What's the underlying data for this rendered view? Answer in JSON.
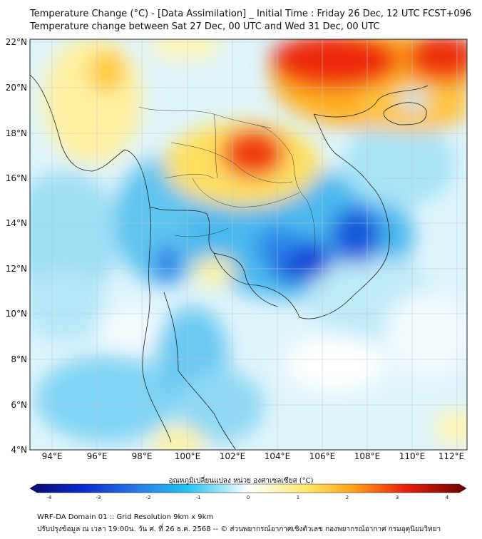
{
  "title_line1": "Temperature Change (°C) - [Data Assimilation] _ Initial Time : Friday 26 Dec, 12 UTC FCST+096",
  "title_line2": "Temperature change between Sat 27 Dec, 00 UTC and Wed 31 Dec, 00 UTC",
  "lat_labels": [
    "22°N",
    "20°N",
    "18°N",
    "16°N",
    "14°N",
    "12°N",
    "10°N",
    "8°N",
    "6°N",
    "4°N"
  ],
  "lon_labels": [
    "94°E",
    "96°E",
    "98°E",
    "100°E",
    "102°E",
    "104°E",
    "106°E",
    "108°E",
    "110°E",
    "112°E"
  ],
  "colorbar": {
    "label": "อุณหภูมิเปลี่ยนแปลง หน่วย องศาเซลเซียส (°C)",
    "ticks": [
      "-4",
      "-3",
      "-2",
      "-1",
      "0",
      "1",
      "2",
      "3",
      "4"
    ],
    "min": -4,
    "max": 4
  },
  "footer_line1": "WRF-DA Domain 01 :: Grid Resolution 9km x 9km",
  "footer_line2": "ปรับปรุงข้อมูล ณ เวลา 19:00น. วัน ศ. ที่ 26 ธ.ค. 2568 -- © ส่วนพยากรณ์อากาศเชิงตัวเลข กองพยากรณ์อากาศ กรมอุตุนิยมวิทยา",
  "colors": {
    "cold": "#0a2acc",
    "cool": "#1ab0ef",
    "neutral": "#ffffff",
    "warm": "#ffd21a",
    "hot": "#e01010"
  }
}
